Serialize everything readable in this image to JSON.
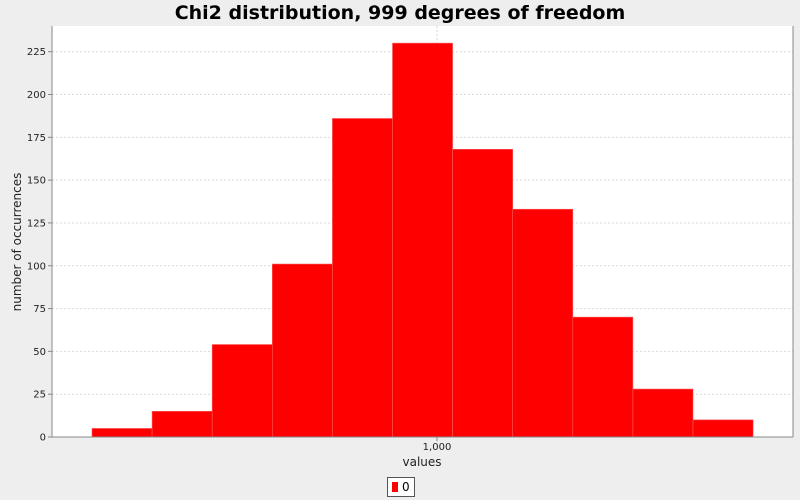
{
  "chart_data": {
    "type": "bar",
    "title": "Chi2 distribution, 999 degrees of freedom",
    "xlabel": "values",
    "ylabel": "number of occurrences",
    "bins": [
      {
        "value": 5
      },
      {
        "value": 15
      },
      {
        "value": 54
      },
      {
        "value": 101
      },
      {
        "value": 186
      },
      {
        "value": 230
      },
      {
        "value": 168
      },
      {
        "value": 133
      },
      {
        "value": 70
      },
      {
        "value": 28
      },
      {
        "value": 10
      }
    ],
    "x_ticks": [
      "1,000"
    ],
    "y_ticks": [
      0,
      25,
      50,
      75,
      100,
      125,
      150,
      175,
      200,
      225
    ],
    "ylim": [
      0,
      240
    ],
    "grid": true,
    "legend": {
      "placement": "bottom",
      "entries": [
        {
          "label": "0",
          "color": "#ff0000"
        }
      ]
    },
    "bar_color": "#ff0000",
    "series": [
      {
        "name": "0"
      }
    ]
  }
}
